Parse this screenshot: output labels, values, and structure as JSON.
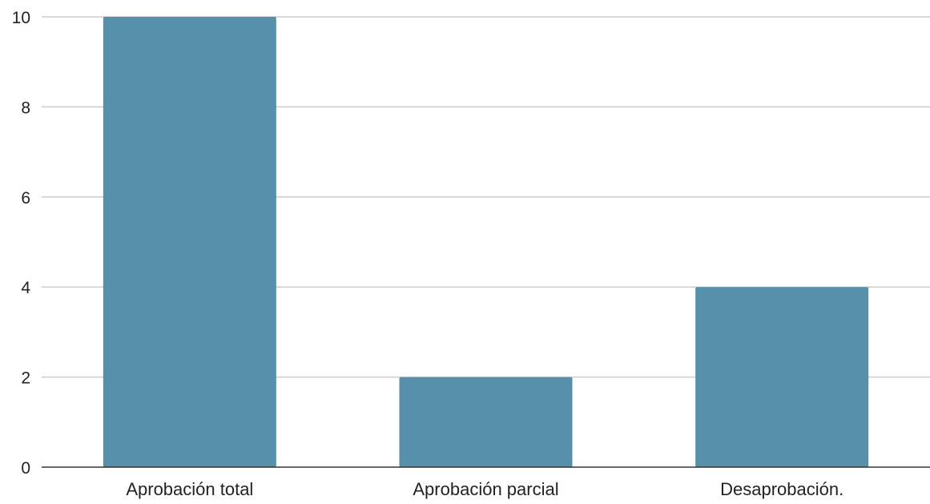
{
  "chart_data": {
    "type": "bar",
    "categories": [
      "Aprobación total",
      "Aprobación parcial",
      "Desaprobación."
    ],
    "values": [
      10,
      2,
      4
    ],
    "ylim": [
      0,
      10
    ],
    "yticks": [
      "0",
      "2",
      "4",
      "6",
      "8",
      "10"
    ],
    "grid": true,
    "legend": "none",
    "colors": {
      "bar": "#5690aa",
      "grid": "#cccccc",
      "axis": "#333333"
    }
  }
}
